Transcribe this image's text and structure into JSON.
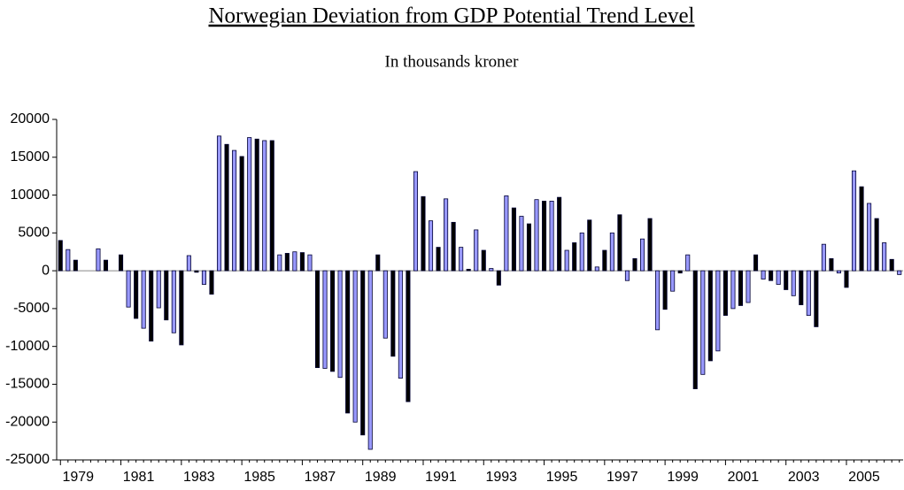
{
  "chart_data": {
    "type": "bar",
    "title": "Norwegian Deviation from GDP Potential Trend Level",
    "subtitle": "In thousands kroner",
    "categories": [
      "1979",
      null,
      null,
      null,
      null,
      null,
      null,
      null,
      "1981",
      null,
      null,
      null,
      null,
      null,
      null,
      null,
      "1983",
      null,
      null,
      null,
      null,
      null,
      null,
      null,
      "1985",
      null,
      null,
      null,
      null,
      null,
      null,
      null,
      "1987",
      null,
      null,
      null,
      null,
      null,
      null,
      null,
      "1989",
      null,
      null,
      null,
      null,
      null,
      null,
      null,
      "1991",
      null,
      null,
      null,
      null,
      null,
      null,
      null,
      "1993",
      null,
      null,
      null,
      null,
      null,
      null,
      null,
      "1995",
      null,
      null,
      null,
      null,
      null,
      null,
      null,
      "1997",
      null,
      null,
      null,
      null,
      null,
      null,
      null,
      "1999",
      null,
      null,
      null,
      null,
      null,
      null,
      null,
      "2001",
      null,
      null,
      null,
      null,
      null,
      null,
      null,
      "2003",
      null,
      null,
      null,
      null,
      null,
      null,
      null,
      "2005",
      null,
      null,
      null,
      null,
      null,
      null,
      null
    ],
    "values": [
      4000,
      2800,
      1400,
      0,
      0,
      2900,
      1400,
      0,
      2100,
      -4800,
      -6300,
      -7600,
      -9300,
      -4900,
      -6500,
      -8200,
      -9800,
      2000,
      -200,
      -1800,
      -3100,
      17800,
      16700,
      15900,
      15100,
      17600,
      17400,
      17200,
      17200,
      2100,
      2300,
      2500,
      2400,
      2100,
      -12800,
      -12900,
      -13300,
      -14100,
      -18800,
      -20000,
      -21700,
      -23600,
      2100,
      -8900,
      -11300,
      -14200,
      -17300,
      13100,
      9800,
      6600,
      3100,
      9500,
      6400,
      3100,
      200,
      5400,
      2700,
      300,
      -1900,
      9900,
      8300,
      7200,
      6200,
      9400,
      9200,
      9200,
      9700,
      2700,
      3700,
      5000,
      6700,
      500,
      2700,
      5000,
      7400,
      -1300,
      1600,
      4200,
      6900,
      -7800,
      -5100,
      -2700,
      -300,
      2100,
      -15600,
      -13700,
      -11900,
      -10600,
      -5900,
      -5000,
      -4600,
      -4200,
      2100,
      -1100,
      -1300,
      -1800,
      -2500,
      -3300,
      -4500,
      -5900,
      -7400,
      3500,
      1600,
      -300,
      -2200,
      13200,
      11100,
      8900,
      6900,
      3700,
      1500,
      -500
    ],
    "colors": [
      "#000000",
      "#9999ff"
    ],
    "edgecolor": "#000033",
    "ylim": [
      -25000,
      20000
    ],
    "yticks": [
      -25000,
      -20000,
      -15000,
      -10000,
      -5000,
      0,
      5000,
      10000,
      15000,
      20000
    ],
    "grid": false
  }
}
